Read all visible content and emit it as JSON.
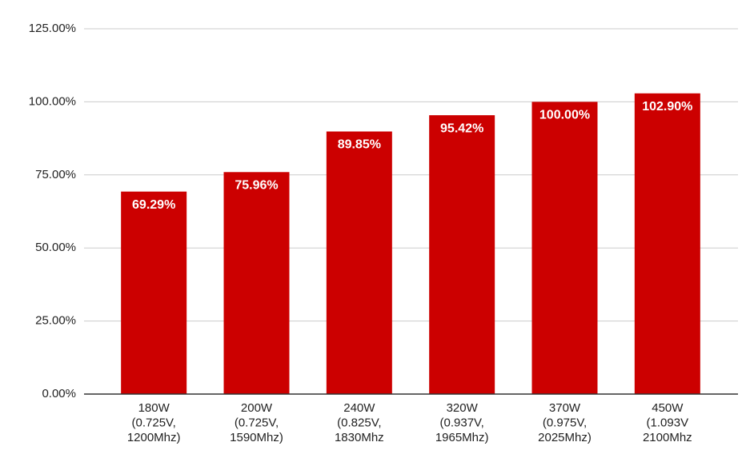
{
  "chart_data": {
    "type": "bar",
    "categories": [
      "180W\n(0.725V,\n1200Mhz)",
      "200W\n(0.725V,\n1590Mhz)",
      "240W\n(0.825V,\n1830Mhz",
      "320W\n(0.937V,\n1965Mhz)",
      "370W\n(0.975V,\n2025Mhz)",
      "450W\n(1.093V\n2100Mhz"
    ],
    "values": [
      69.29,
      75.96,
      89.85,
      95.42,
      100.0,
      102.9
    ],
    "value_labels": [
      "69.29%",
      "75.96%",
      "89.85%",
      "95.42%",
      "100.00%",
      "102.90%"
    ],
    "color": "#cc0000",
    "ylim": [
      0,
      125
    ],
    "yticks": [
      {
        "value": 0,
        "label": "0.00%"
      },
      {
        "value": 25,
        "label": "25.00%"
      },
      {
        "value": 50,
        "label": "50.00%"
      },
      {
        "value": 75,
        "label": "75.00%"
      },
      {
        "value": 100,
        "label": "100.00%"
      },
      {
        "value": 125,
        "label": "125.00%"
      }
    ],
    "grid": true
  }
}
